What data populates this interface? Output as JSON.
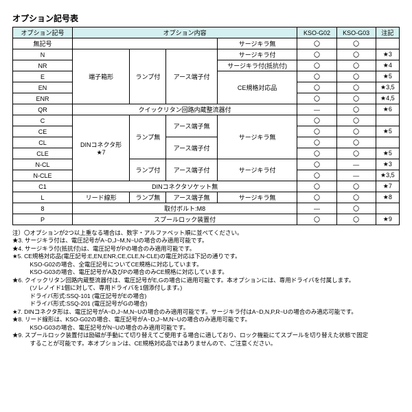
{
  "title": "オプション記号表",
  "hdr": {
    "code": "オプション記号",
    "content": "オプション内容",
    "g02": "KSO-G02",
    "g03": "KSO-G03",
    "note": "注記"
  },
  "none": "無記号",
  "codes": {
    "n": "N",
    "nr": "NR",
    "e": "E",
    "en": "EN",
    "enr": "ENR",
    "qr": "QR",
    "c": "C",
    "ce": "CE",
    "cl": "CL",
    "cle": "CLE",
    "ncl": "N-CL",
    "ncle": "N-CLE",
    "c1": "C1",
    "l": "L",
    "8": "8",
    "p": "P"
  },
  "grp": {
    "tbox": "端子箱形",
    "din": "DINコネクタ形",
    "star7": "★7",
    "lamp_on": "ランプ付",
    "lamp_off": "ランプ無",
    "lead": "リード線形",
    "earth": "アース端子付",
    "earth_none": "アース端子無",
    "ce": "CE規格対応品",
    "surge_none": "サージキラ無",
    "surge_on": "サージキラ付",
    "surge_r": "サージキラ付(抵抗付)",
    "quick": "クイックリタン回路内蔵整流器付",
    "dinsock": "DINコネクタソケット無",
    "bolt": "取付ボルト:M8",
    "spool": "スプールロック装置付"
  },
  "m": {
    "o": "〇",
    "d": "—"
  },
  "notes": {
    "n3": "★3",
    "n4": "★4",
    "n5": "★5",
    "n35": "★3,5",
    "n45": "★4,5",
    "n6": "★6",
    "n7": "★7",
    "n8": "★8",
    "n9": "★9"
  },
  "footer": {
    "lead": "注）〇オプションが2つ以上重なる場合は、数字・アルファベット順に並べてください。",
    "l3": "★3. サージキラ付は、電圧記号がA~D,J~M,N~Uの場合のみ適用可能です。",
    "l4": "★4. サージキラ付(抵抗付)は、電圧記号がPの場合のみ適用可能です。",
    "l5": "★5. CE規格対応品(電圧記号:E,EN,ENR,CE,CLE,N-CLE)の電圧対応は下記の通りです。",
    "l5a": "KSO-G02の場合、全電圧記号についてCE規格に対応しています。",
    "l5b": "KSO-G03の場合、電圧記号がA及びPの場合のみCE規格に対応しています。",
    "l6": "★6. クイックリタン回路内蔵整流器付は、電圧記号がE,Gの場合に適用可能です。本オプションには、専用ドライバを付属します。",
    "l6a": "(ソレノイド1個に対して、専用ドライバを1個添付します。)",
    "l6b": "ドライバ形式:SSQ-101  (電圧記号がEの場合)",
    "l6c": "ドライバ形式:SSQ-201  (電圧記号がGの場合)",
    "l7": "★7. DINコネクタ形は、電圧記号がA~D,J~M,N~Uの場合のみ適用可能です。サージキラ付はA~D,N,P,R~Uの場合のみ適応可能です。",
    "l8": "★8. リード線形は、KSO-G02の場合、電圧記号がA~D,J~M,N~Uの場合のみ適用可能です。",
    "l8a": "KSO-G03の場合、電圧記号がN~Uの場合のみ適用可能です。",
    "l9": "★9. スプールロック装置付は励磁が手動にて切り替えてご使用する場合に適しており、ロック機能にてスプールを切り替えた状態で固定",
    "l9a": "することが可能です。本オプションは、CE規格対応品ではありませんので、ご注意ください。"
  }
}
